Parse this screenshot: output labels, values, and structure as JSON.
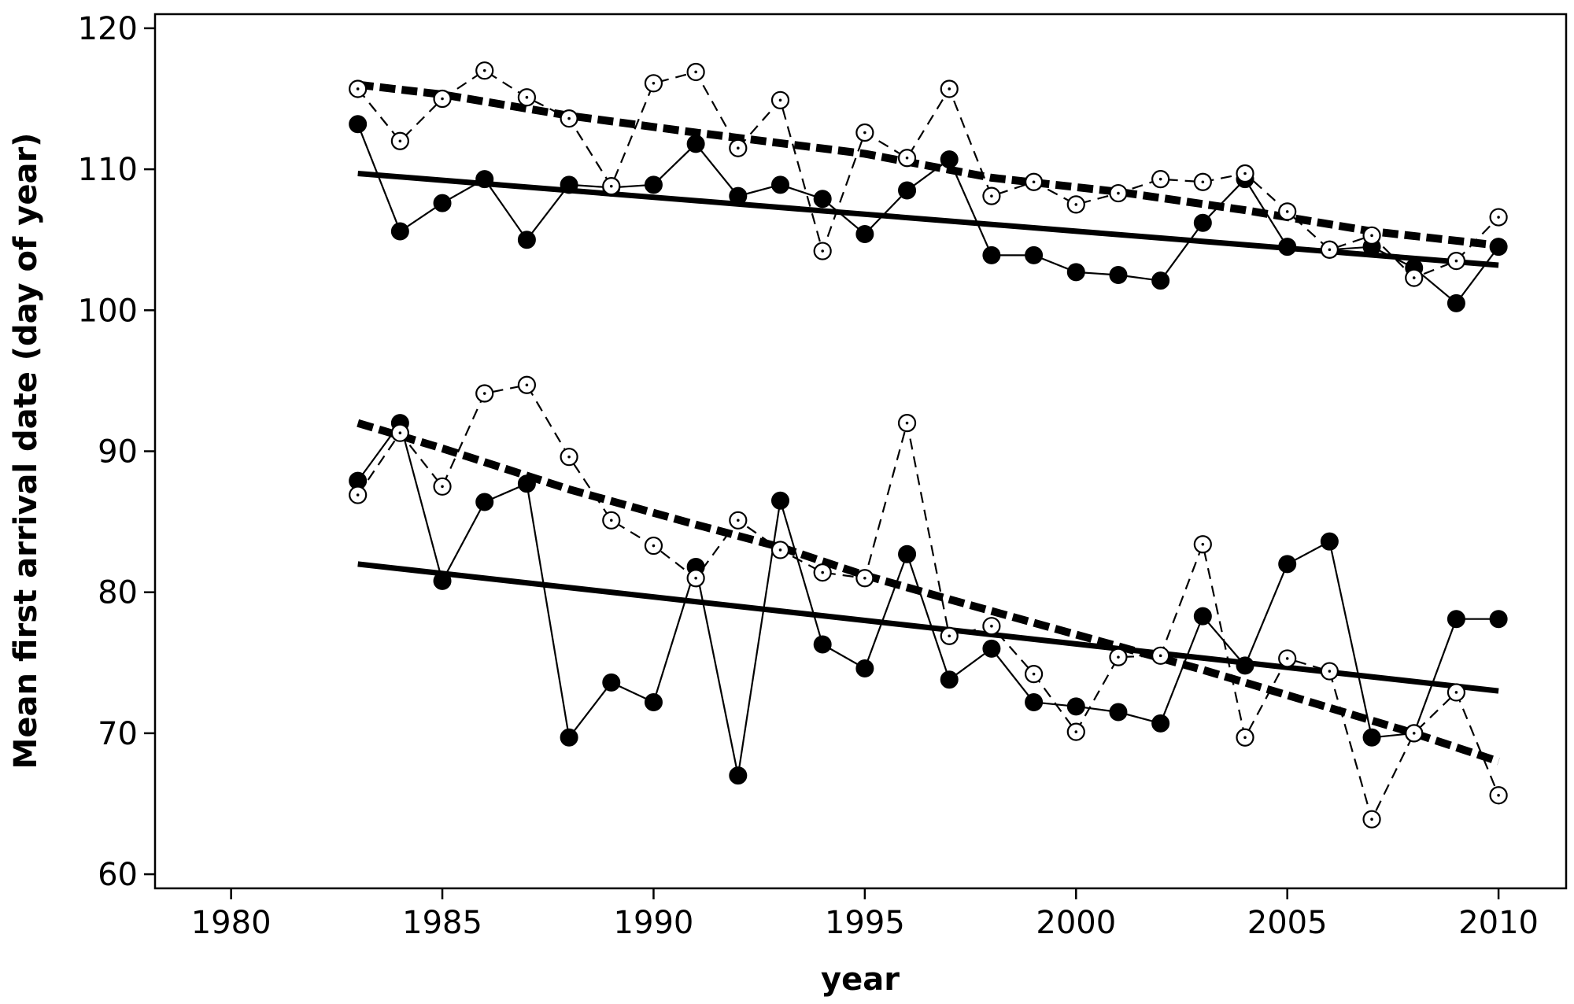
{
  "chart_data": {
    "type": "line",
    "title": "",
    "xlabel": "year",
    "ylabel": "Mean first arrival date (day of year)",
    "xlim": [
      1978.2,
      2011.6
    ],
    "ylim": [
      59,
      121
    ],
    "xticks": [
      1980,
      1985,
      1990,
      1995,
      2000,
      2005,
      2010
    ],
    "yticks": [
      60,
      70,
      80,
      90,
      100,
      110,
      120
    ],
    "grid": false,
    "legend": "none",
    "series": [
      {
        "style": "filled-solid",
        "x": [
          1983,
          1984,
          1985,
          1986,
          1987,
          1988,
          1989,
          1990,
          1991,
          1992,
          1993,
          1994,
          1995,
          1996,
          1997,
          1998,
          1999,
          2000,
          2001,
          2002,
          2003,
          2004,
          2005,
          2006,
          2007,
          2008,
          2009,
          2010
        ],
        "y": [
          113.2,
          105.6,
          107.6,
          109.3,
          105.0,
          108.9,
          108.7,
          108.9,
          111.8,
          108.1,
          108.9,
          107.9,
          105.4,
          108.5,
          110.7,
          103.9,
          103.9,
          102.7,
          102.5,
          102.1,
          106.2,
          109.3,
          104.5,
          104.3,
          104.5,
          103.0,
          100.5,
          104.5
        ]
      },
      {
        "style": "open-dashed",
        "x": [
          1983,
          1984,
          1985,
          1986,
          1987,
          1988,
          1989,
          1990,
          1991,
          1992,
          1993,
          1994,
          1995,
          1996,
          1997,
          1998,
          1999,
          2000,
          2001,
          2002,
          2003,
          2004,
          2005,
          2006,
          2007,
          2008,
          2009,
          2010
        ],
        "y": [
          115.7,
          112.0,
          115.0,
          117.0,
          115.1,
          113.6,
          108.8,
          116.1,
          116.9,
          111.5,
          114.9,
          104.2,
          112.6,
          110.8,
          115.7,
          108.1,
          109.1,
          107.5,
          108.3,
          109.3,
          109.1,
          109.7,
          107.0,
          104.3,
          105.3,
          102.3,
          103.5,
          106.6
        ]
      },
      {
        "style": "filled-solid",
        "x": [
          1983,
          1984,
          1985,
          1986,
          1987,
          1988,
          1989,
          1990,
          1991,
          1992,
          1993,
          1994,
          1995,
          1996,
          1997,
          1998,
          1999,
          2000,
          2001,
          2002,
          2003,
          2004,
          2005,
          2006,
          2007,
          2008,
          2009,
          2010
        ],
        "y": [
          87.9,
          92.0,
          80.8,
          86.4,
          87.7,
          69.7,
          73.6,
          72.2,
          81.8,
          67.0,
          86.5,
          76.3,
          74.6,
          82.7,
          73.8,
          76.0,
          72.2,
          71.9,
          71.5,
          70.7,
          78.3,
          74.8,
          82.0,
          83.6,
          69.7,
          70.0,
          78.1,
          78.1
        ]
      },
      {
        "style": "open-dashed",
        "x": [
          1983,
          1984,
          1985,
          1986,
          1987,
          1988,
          1989,
          1990,
          1991,
          1992,
          1993,
          1994,
          1995,
          1996,
          1997,
          1998,
          1999,
          2000,
          2001,
          2002,
          2003,
          2004,
          2005,
          2006,
          2007,
          2008,
          2009,
          2010
        ],
        "y": [
          86.9,
          91.3,
          87.5,
          94.1,
          94.7,
          89.6,
          85.1,
          83.3,
          81.0,
          85.1,
          83.0,
          81.4,
          81.0,
          92.0,
          76.9,
          77.6,
          74.2,
          70.1,
          75.4,
          75.5,
          83.4,
          69.7,
          75.3,
          74.4,
          63.9,
          70.0,
          72.9,
          65.6
        ]
      }
    ],
    "trend_lines": [
      {
        "style": "solid",
        "x": [
          1983,
          2010
        ],
        "y": [
          109.7,
          103.2
        ]
      },
      {
        "style": "dashed",
        "x": [
          1983,
          1985,
          1988,
          1991,
          1995,
          1998,
          2001,
          2004,
          2007,
          2010
        ],
        "y": [
          116.0,
          115.3,
          113.8,
          112.6,
          111.1,
          109.4,
          108.4,
          107.1,
          105.6,
          104.6
        ]
      },
      {
        "style": "solid",
        "x": [
          1983,
          2010
        ],
        "y": [
          82.0,
          73.0
        ]
      },
      {
        "style": "dashed",
        "x": [
          1983,
          1985,
          1988,
          1991,
          1993,
          1995,
          1997,
          2000,
          2003,
          2006,
          2008,
          2010
        ],
        "y": [
          92.0,
          90.2,
          87.3,
          84.8,
          83.2,
          81.2,
          79.5,
          77.0,
          74.5,
          71.8,
          70.0,
          68.0
        ]
      }
    ]
  }
}
